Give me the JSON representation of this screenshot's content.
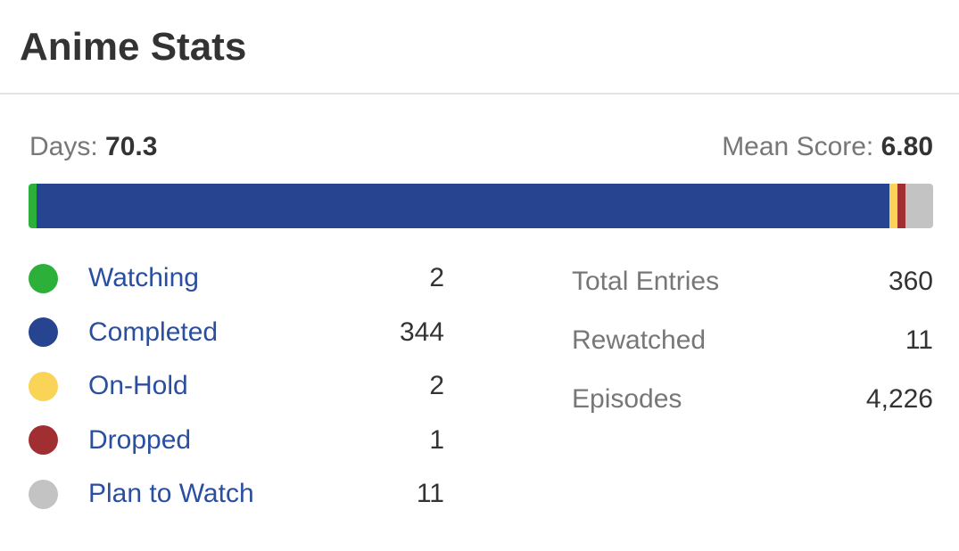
{
  "title": "Anime Stats",
  "days": {
    "label": "Days: ",
    "value": "70.3"
  },
  "mean_score": {
    "label": "Mean Score: ",
    "value": "6.80"
  },
  "statuses": [
    {
      "label": "Watching",
      "count": "2",
      "value": 2,
      "color": "#2db039"
    },
    {
      "label": "Completed",
      "count": "344",
      "value": 344,
      "color": "#26448f"
    },
    {
      "label": "On-Hold",
      "count": "2",
      "value": 2,
      "color": "#f9d457"
    },
    {
      "label": "Dropped",
      "count": "1",
      "value": 1,
      "color": "#a12f31"
    },
    {
      "label": "Plan to Watch",
      "count": "11",
      "value": 11,
      "color": "#c3c3c3"
    }
  ],
  "totals": [
    {
      "label": "Total Entries",
      "value": "360"
    },
    {
      "label": "Rewatched",
      "value": "11"
    },
    {
      "label": "Episodes",
      "value": "4,226"
    }
  ]
}
